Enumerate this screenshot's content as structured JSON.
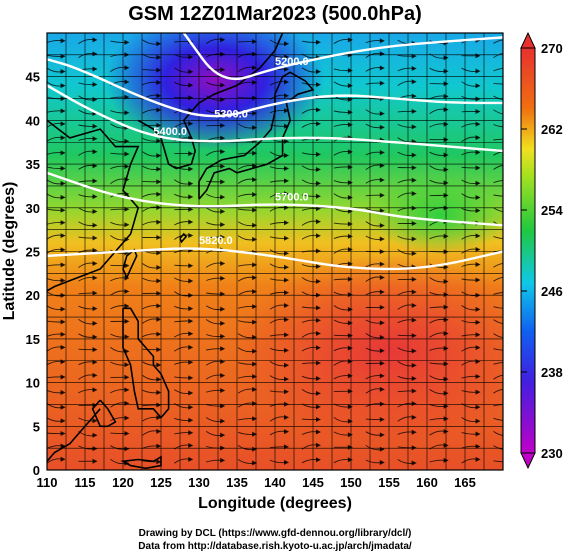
{
  "title": "GSM 12Z01Mar2023 (500.0hPa)",
  "colors": {
    "magenta": "#c000c8",
    "blue": "#2030e0",
    "cyan": "#10c8e8",
    "green": "#20c840",
    "yellow": "#f0e020",
    "orange": "#f07010",
    "red": "#e84040",
    "contour": "#ffffff",
    "coast": "#000000",
    "streamline": "#000000"
  },
  "map": {
    "lon_range": [
      110,
      170
    ],
    "lat_range": [
      0,
      50
    ],
    "grid": true,
    "x_ticks": [
      "110",
      "115",
      "120",
      "125",
      "130",
      "135",
      "140",
      "145",
      "150",
      "155",
      "160",
      "165"
    ],
    "y_ticks": [
      "0",
      "5",
      "10",
      "15",
      "20",
      "25",
      "30",
      "35",
      "40",
      "45"
    ],
    "xlabel": "Longitude (degrees)",
    "ylabel": "Latitude  (degrees)",
    "shading_variable_range": [
      230,
      270
    ]
  },
  "contours": [
    {
      "label": "5200.0",
      "lat_points": [
        [
          128,
          50
        ],
        [
          133,
          44
        ],
        [
          140,
          46
        ],
        [
          148,
          47.5
        ],
        [
          155,
          48.5
        ],
        [
          162,
          49
        ],
        [
          170,
          49.5
        ]
      ]
    },
    {
      "label": "5300.0",
      "lat_points": [
        [
          110,
          47
        ],
        [
          114,
          46
        ],
        [
          124,
          42
        ],
        [
          132,
          40
        ],
        [
          140,
          42
        ],
        [
          148,
          43
        ],
        [
          156,
          42.5
        ],
        [
          163,
          42
        ],
        [
          170,
          42
        ]
      ]
    },
    {
      "label": "5400.0",
      "lat_points": [
        [
          110,
          44
        ],
        [
          116,
          41
        ],
        [
          124,
          38
        ],
        [
          132,
          37.5
        ],
        [
          140,
          38
        ],
        [
          148,
          38
        ],
        [
          156,
          37.5
        ],
        [
          163,
          37
        ],
        [
          170,
          36.5
        ]
      ]
    },
    {
      "label": "5700.0",
      "lat_points": [
        [
          110,
          34
        ],
        [
          120,
          31
        ],
        [
          130,
          30
        ],
        [
          140,
          30.5
        ],
        [
          150,
          30
        ],
        [
          156,
          29
        ],
        [
          162,
          28.5
        ],
        [
          170,
          28
        ]
      ]
    },
    {
      "label": "5820.0",
      "lat_points": [
        [
          110,
          24.5
        ],
        [
          120,
          25
        ],
        [
          130,
          25.5
        ],
        [
          140,
          24.5
        ],
        [
          150,
          23
        ],
        [
          160,
          23
        ],
        [
          170,
          25
        ]
      ]
    }
  ],
  "colorbar": {
    "ticks": [
      "230",
      "238",
      "246",
      "254",
      "262",
      "270"
    ],
    "range": [
      230,
      270
    ]
  },
  "credits": {
    "line1": "Drawing by DCL (https://www.gfd-dennou.org/library/dcl/)",
    "line2": "Data from http://database.rish.kyoto-u.ac.jp/arch/jmadata/"
  }
}
